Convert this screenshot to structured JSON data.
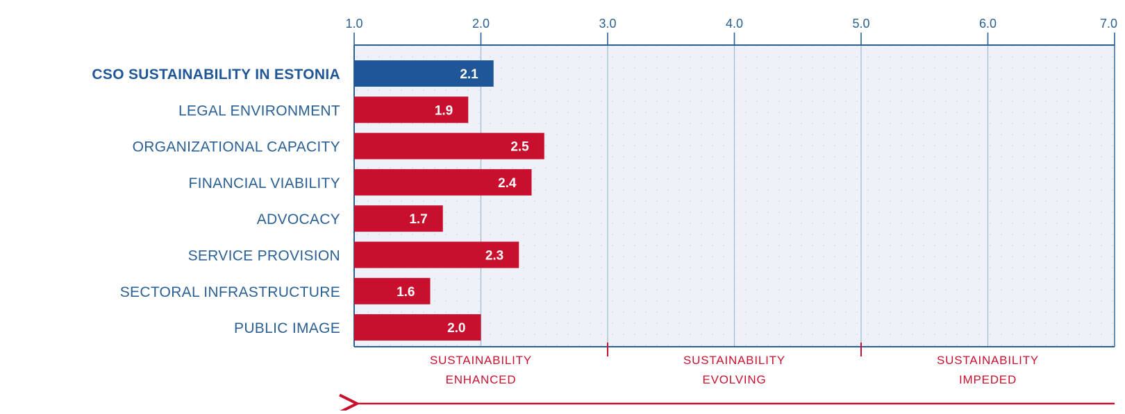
{
  "chart_data": {
    "type": "bar",
    "orientation": "horizontal",
    "categories": [
      "CSO SUSTAINABILITY IN ESTONIA",
      "LEGAL ENVIRONMENT",
      "ORGANIZATIONAL CAPACITY",
      "FINANCIAL VIABILITY",
      "ADVOCACY",
      "SERVICE PROVISION",
      "SECTORAL INFRASTRUCTURE",
      "PUBLIC IMAGE"
    ],
    "values": [
      2.1,
      1.9,
      2.5,
      2.4,
      1.7,
      2.3,
      1.6,
      2.0
    ],
    "value_labels": [
      "2.1",
      "1.9",
      "2.5",
      "2.4",
      "1.7",
      "2.3",
      "1.6",
      "2.0"
    ],
    "highlight_index": 0,
    "xlim": [
      1.0,
      7.0
    ],
    "ticks": [
      1,
      2,
      3,
      4,
      5,
      6,
      7
    ],
    "tick_labels": [
      "1.0",
      "2.0",
      "3.0",
      "4.0",
      "5.0",
      "6.0",
      "7.0"
    ],
    "axis_position": "top",
    "grid": true,
    "zones": [
      {
        "line1": "SUSTAINABILITY",
        "line2": "ENHANCED",
        "range": [
          1,
          3
        ]
      },
      {
        "line1": "SUSTAINABILITY",
        "line2": "EVOLVING",
        "range": [
          3,
          5
        ]
      },
      {
        "line1": "SUSTAINABILITY",
        "line2": "IMPEDED",
        "range": [
          5,
          7
        ]
      }
    ],
    "arrow_direction": "left",
    "colors": {
      "highlight_bar": "#1f5697",
      "bar": "#c8102e",
      "label_text": "#2a5f93",
      "axis": "#2a5f93",
      "grid": "#9fb6cf",
      "plot_bg": "#eef2f8",
      "zone_text": "#c8102e",
      "arrow": "#c8102e",
      "value_text": "#ffffff"
    }
  }
}
